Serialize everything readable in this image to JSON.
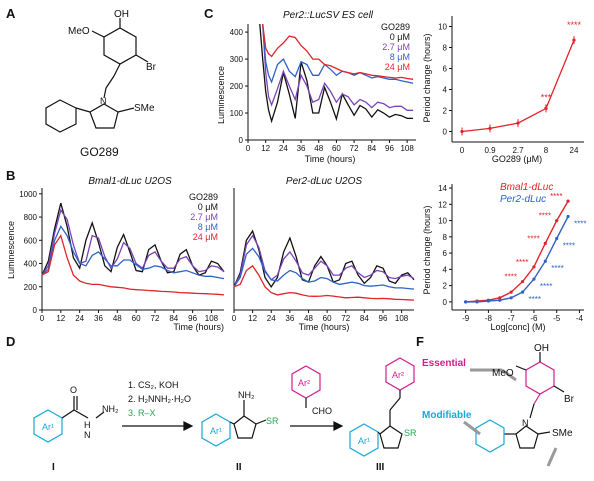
{
  "panels": {
    "A": {
      "label": "A",
      "compound": "GO289",
      "atoms": {
        "oh": "OH",
        "meo": "MeO",
        "br": "Br",
        "sme": "SMe",
        "n": "N"
      }
    },
    "B": {
      "label": "B"
    },
    "C": {
      "label": "C"
    },
    "D": {
      "label": "D"
    },
    "F": {
      "label": "F"
    }
  },
  "legend_conc": {
    "title": "GO289",
    "items": [
      {
        "label": "0 μM",
        "color": "#111111"
      },
      {
        "label": "2.7 μM",
        "color": "#7a44b8"
      },
      {
        "label": "8 μM",
        "color": "#2e63c6"
      },
      {
        "label": "24 μM",
        "color": "#e0242a"
      }
    ]
  },
  "scheme": {
    "steps": [
      "1. CS₂, KOH",
      "2. H₂NNH₂·H₂O",
      "3. R–X"
    ],
    "ar1": "Ar¹",
    "ar2": "Ar²",
    "nh2": "NH₂",
    "h": "H",
    "sr": "SR",
    "cho": "CHO",
    "o": "O",
    "n": "N",
    "nh": "NH",
    "compounds": [
      "I",
      "II",
      "III"
    ],
    "green": "#24a84a",
    "cyan": "#19a8d8",
    "magenta": "#d21c8f"
  },
  "sar": {
    "essential": "Essential",
    "modifiable": "Modifiable",
    "oh": "OH",
    "meo": "MeO",
    "br": "Br",
    "sme": "SMe",
    "n": "N"
  },
  "chart_data": [
    {
      "id": "C-left",
      "type": "line",
      "title": "Per2::LucSV ES cell",
      "xlabel": "Time (hours)",
      "ylabel": "Luminescence",
      "xlim": [
        0,
        114
      ],
      "ylim": [
        0,
        430
      ],
      "xticks": [
        0,
        12,
        24,
        36,
        48,
        60,
        72,
        84,
        96,
        108
      ],
      "yticks": [
        0,
        100,
        200,
        300,
        400
      ],
      "series": [
        {
          "name": "0 μM",
          "color": "#111111",
          "x": [
            8,
            10,
            12,
            14,
            16,
            20,
            24,
            28,
            32,
            36,
            40,
            44,
            48,
            52,
            56,
            60,
            64,
            68,
            72,
            76,
            80,
            84,
            88,
            92,
            96,
            100,
            104,
            108,
            112
          ],
          "y": [
            430,
            300,
            180,
            110,
            70,
            140,
            250,
            170,
            80,
            290,
            220,
            100,
            100,
            195,
            140,
            78,
            170,
            130,
            92,
            128,
            115,
            85,
            112,
            100,
            85,
            95,
            90,
            80,
            80
          ]
        },
        {
          "name": "2.7 μM",
          "color": "#7a44b8",
          "x": [
            10,
            12,
            14,
            16,
            20,
            24,
            28,
            32,
            36,
            40,
            44,
            48,
            52,
            56,
            60,
            64,
            68,
            72,
            76,
            80,
            84,
            88,
            92,
            96,
            100,
            104,
            108,
            112
          ],
          "y": [
            430,
            250,
            160,
            130,
            190,
            255,
            200,
            150,
            240,
            200,
            140,
            150,
            210,
            180,
            140,
            170,
            160,
            130,
            150,
            140,
            120,
            140,
            135,
            120,
            125,
            125,
            110,
            110
          ]
        },
        {
          "name": "8 μM",
          "color": "#2e63c6",
          "x": [
            10,
            12,
            14,
            16,
            20,
            24,
            28,
            32,
            36,
            40,
            44,
            48,
            52,
            56,
            60,
            64,
            68,
            72,
            76,
            80,
            84,
            88,
            92,
            96,
            100,
            104,
            108,
            112
          ],
          "y": [
            430,
            290,
            240,
            215,
            280,
            300,
            255,
            235,
            290,
            280,
            240,
            240,
            280,
            262,
            240,
            255,
            250,
            240,
            250,
            240,
            230,
            235,
            230,
            225,
            225,
            220,
            215,
            210
          ]
        },
        {
          "name": "24 μM",
          "color": "#e0242a",
          "x": [
            10,
            12,
            14,
            16,
            20,
            24,
            28,
            32,
            36,
            40,
            44,
            48,
            52,
            56,
            60,
            64,
            68,
            72,
            76,
            80,
            84,
            88,
            92,
            96,
            100,
            104,
            108,
            112
          ],
          "y": [
            430,
            340,
            320,
            310,
            340,
            360,
            385,
            380,
            350,
            330,
            300,
            300,
            280,
            275,
            265,
            255,
            250,
            245,
            250,
            245,
            240,
            238,
            235,
            232,
            230,
            232,
            228,
            225
          ]
        }
      ]
    },
    {
      "id": "C-right",
      "type": "line",
      "xlabel": "GO289 (μM)",
      "ylabel": "Period change (hours)",
      "categories": [
        "0",
        "0.9",
        "2.7",
        "8",
        "24"
      ],
      "ylim": [
        -1,
        11
      ],
      "yticks": [
        0,
        2,
        4,
        6,
        8,
        10
      ],
      "series": [
        {
          "name": "Per2::LucSV",
          "color": "#e0242a",
          "values": [
            0,
            0.3,
            0.8,
            2.2,
            8.7
          ]
        }
      ],
      "annotations": [
        "***",
        "****"
      ]
    },
    {
      "id": "B-left",
      "type": "line",
      "title": "Bmal1-dLuc U2OS",
      "xlabel": "Time (hours)",
      "ylabel": "Luminescence",
      "xlim": [
        0,
        116
      ],
      "ylim": [
        0,
        1050
      ],
      "xticks": [
        0,
        12,
        24,
        36,
        48,
        60,
        72,
        84,
        96,
        108
      ],
      "yticks": [
        0,
        200,
        400,
        600,
        800,
        1000
      ],
      "series": [
        {
          "name": "0 μM",
          "color": "#111111",
          "x": [
            0,
            4,
            8,
            12,
            16,
            20,
            24,
            28,
            32,
            36,
            40,
            44,
            48,
            52,
            56,
            60,
            64,
            68,
            72,
            76,
            80,
            84,
            88,
            92,
            96,
            100,
            104,
            108,
            112,
            116
          ],
          "y": [
            300,
            420,
            700,
            920,
            720,
            450,
            360,
            600,
            750,
            580,
            380,
            330,
            540,
            650,
            500,
            340,
            330,
            520,
            560,
            420,
            320,
            330,
            480,
            520,
            380,
            300,
            320,
            420,
            400,
            330
          ]
        },
        {
          "name": "2.7 μM",
          "color": "#7a44b8",
          "x": [
            0,
            4,
            8,
            12,
            16,
            20,
            24,
            28,
            32,
            36,
            40,
            44,
            48,
            52,
            56,
            60,
            64,
            68,
            72,
            76,
            80,
            84,
            88,
            92,
            96,
            100,
            104,
            108,
            112,
            116
          ],
          "y": [
            300,
            380,
            660,
            860,
            780,
            560,
            400,
            420,
            640,
            620,
            460,
            360,
            440,
            580,
            530,
            400,
            360,
            470,
            500,
            420,
            360,
            360,
            440,
            460,
            380,
            330,
            340,
            380,
            370,
            330
          ]
        },
        {
          "name": "8 μM",
          "color": "#2e63c6",
          "x": [
            0,
            4,
            8,
            12,
            16,
            20,
            24,
            28,
            32,
            36,
            40,
            44,
            48,
            52,
            56,
            60,
            64,
            68,
            72,
            76,
            80,
            84,
            88,
            92,
            96,
            100,
            104,
            108,
            112,
            116
          ],
          "y": [
            300,
            350,
            600,
            720,
            640,
            500,
            400,
            380,
            470,
            500,
            440,
            380,
            380,
            430,
            430,
            390,
            350,
            360,
            380,
            370,
            340,
            320,
            330,
            340,
            320,
            300,
            290,
            290,
            280,
            270
          ]
        },
        {
          "name": "24 μM",
          "color": "#e0242a",
          "x": [
            0,
            4,
            8,
            12,
            16,
            20,
            24,
            28,
            32,
            36,
            40,
            44,
            48,
            52,
            56,
            60,
            64,
            68,
            72,
            76,
            80,
            84,
            88,
            92,
            96,
            100,
            104,
            108,
            112,
            116
          ],
          "y": [
            300,
            330,
            560,
            640,
            450,
            300,
            250,
            230,
            220,
            220,
            210,
            200,
            195,
            190,
            180,
            175,
            172,
            168,
            165,
            160,
            158,
            155,
            150,
            148,
            145,
            142,
            140,
            138,
            135,
            130
          ]
        }
      ]
    },
    {
      "id": "B-mid",
      "type": "line",
      "title": "Per2-dLuc U2OS",
      "xlabel": "Time (hours)",
      "xlim": [
        0,
        116
      ],
      "ylim": [
        0,
        1050
      ],
      "xticks": [
        0,
        12,
        24,
        36,
        48,
        60,
        72,
        84,
        96,
        108
      ],
      "series": [
        {
          "name": "0 μM",
          "color": "#111111",
          "x": [
            0,
            4,
            8,
            12,
            16,
            20,
            24,
            28,
            32,
            36,
            40,
            44,
            48,
            52,
            56,
            60,
            64,
            68,
            72,
            76,
            80,
            84,
            88,
            92,
            96,
            100,
            104,
            108,
            112,
            116
          ],
          "y": [
            200,
            320,
            600,
            680,
            520,
            280,
            200,
            280,
            500,
            620,
            460,
            260,
            240,
            380,
            460,
            380,
            240,
            260,
            400,
            420,
            300,
            230,
            280,
            380,
            360,
            250,
            230,
            300,
            320,
            260
          ]
        },
        {
          "name": "2.7 μM",
          "color": "#7a44b8",
          "x": [
            0,
            4,
            8,
            12,
            16,
            20,
            24,
            28,
            32,
            36,
            40,
            44,
            48,
            52,
            56,
            60,
            64,
            68,
            72,
            76,
            80,
            84,
            88,
            92,
            96,
            100,
            104,
            108,
            112,
            116
          ],
          "y": [
            200,
            300,
            560,
            640,
            540,
            340,
            260,
            300,
            440,
            500,
            420,
            320,
            300,
            360,
            420,
            380,
            300,
            300,
            360,
            380,
            320,
            280,
            300,
            340,
            330,
            280,
            270,
            290,
            300,
            270
          ]
        },
        {
          "name": "8 μM",
          "color": "#2e63c6",
          "x": [
            0,
            4,
            8,
            12,
            16,
            20,
            24,
            28,
            32,
            36,
            40,
            44,
            48,
            52,
            56,
            60,
            64,
            68,
            72,
            76,
            80,
            84,
            88,
            92,
            96,
            100,
            104,
            108,
            112,
            116
          ],
          "y": [
            200,
            280,
            480,
            530,
            460,
            330,
            260,
            250,
            300,
            340,
            320,
            270,
            240,
            250,
            280,
            270,
            240,
            220,
            230,
            240,
            230,
            210,
            205,
            210,
            215,
            200,
            190,
            190,
            185,
            180
          ]
        },
        {
          "name": "24 μM",
          "color": "#e0242a",
          "x": [
            0,
            4,
            8,
            12,
            16,
            20,
            24,
            28,
            32,
            36,
            40,
            44,
            48,
            52,
            56,
            60,
            64,
            68,
            72,
            76,
            80,
            84,
            88,
            92,
            96,
            100,
            104,
            108,
            112,
            116
          ],
          "y": [
            200,
            220,
            340,
            380,
            300,
            200,
            150,
            130,
            140,
            150,
            145,
            130,
            120,
            118,
            120,
            125,
            120,
            112,
            105,
            108,
            110,
            105,
            100,
            98,
            100,
            96,
            92,
            90,
            88,
            85
          ]
        }
      ]
    },
    {
      "id": "B-right",
      "type": "scatter",
      "xlabel": "Log[conc] (M)",
      "ylabel": "Period change (hours)",
      "xlim": [
        -9.6,
        -3.8
      ],
      "ylim": [
        -1,
        14.5
      ],
      "xticks": [
        -9,
        -8,
        -7,
        -6,
        -5,
        -4
      ],
      "yticks": [
        0,
        2,
        4,
        6,
        8,
        10,
        12,
        14
      ],
      "series": [
        {
          "name": "Bmal1-dLuc",
          "color": "#e0242a",
          "points": [
            [
              -9,
              0
            ],
            [
              -8.5,
              0.1
            ],
            [
              -8,
              0.2
            ],
            [
              -7.5,
              0.5
            ],
            [
              -7,
              1.2
            ],
            [
              -6.5,
              2.5
            ],
            [
              -6,
              4.3
            ],
            [
              -5.5,
              7.2
            ],
            [
              -5,
              10
            ],
            [
              -4.5,
              12.4
            ]
          ]
        },
        {
          "name": "Per2-dLuc",
          "color": "#2e63c6",
          "points": [
            [
              -9,
              0
            ],
            [
              -8.5,
              0
            ],
            [
              -8,
              0.1
            ],
            [
              -7.5,
              0.2
            ],
            [
              -7,
              0.5
            ],
            [
              -6.5,
              1.2
            ],
            [
              -6,
              2.8
            ],
            [
              -5.5,
              5
            ],
            [
              -5,
              7.8
            ],
            [
              -4.5,
              10.5
            ]
          ]
        }
      ],
      "annotations": [
        "****"
      ]
    }
  ]
}
